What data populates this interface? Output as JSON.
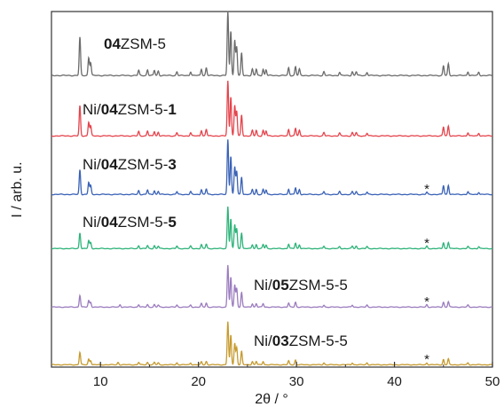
{
  "chart_data": {
    "type": "line",
    "xlabel": "2θ / °",
    "ylabel": "I / arb. u.",
    "xlim": [
      5,
      50
    ],
    "x_ticks": [
      10,
      20,
      30,
      40,
      50
    ],
    "y_ticks": false,
    "grid": false,
    "legend": "none",
    "annotation_marker": "*",
    "annotation_x": 43.3,
    "series": [
      {
        "name_parts": [
          {
            "t": "04",
            "b": true
          },
          {
            "t": "ZSM-5",
            "b": false
          }
        ],
        "color": "#6b6b6b",
        "annotated": false,
        "peaks": [
          [
            7.9,
            0.6
          ],
          [
            8.8,
            0.28
          ],
          [
            9.0,
            0.2
          ],
          [
            13.9,
            0.08
          ],
          [
            14.8,
            0.09
          ],
          [
            15.5,
            0.08
          ],
          [
            15.9,
            0.07
          ],
          [
            17.8,
            0.06
          ],
          [
            19.2,
            0.06
          ],
          [
            20.3,
            0.1
          ],
          [
            20.8,
            0.12
          ],
          [
            23.0,
            1.0
          ],
          [
            23.3,
            0.7
          ],
          [
            23.7,
            0.55
          ],
          [
            23.9,
            0.45
          ],
          [
            24.4,
            0.35
          ],
          [
            25.5,
            0.1
          ],
          [
            25.9,
            0.1
          ],
          [
            26.6,
            0.1
          ],
          [
            26.9,
            0.09
          ],
          [
            29.2,
            0.12
          ],
          [
            29.9,
            0.14
          ],
          [
            30.3,
            0.1
          ],
          [
            32.8,
            0.06
          ],
          [
            34.4,
            0.05
          ],
          [
            35.7,
            0.06
          ],
          [
            36.1,
            0.06
          ],
          [
            37.2,
            0.05
          ],
          [
            45.0,
            0.15
          ],
          [
            45.5,
            0.18
          ],
          [
            47.5,
            0.06
          ],
          [
            48.6,
            0.05
          ]
        ]
      },
      {
        "name_parts": [
          {
            "t": "Ni/",
            "b": false
          },
          {
            "t": "04",
            "b": true
          },
          {
            "t": "ZSM-5-",
            "b": false
          },
          {
            "t": "1",
            "b": true
          }
        ],
        "color": "#e4444c",
        "annotated": false,
        "peaks": [
          [
            7.9,
            0.55
          ],
          [
            8.8,
            0.25
          ],
          [
            9.0,
            0.18
          ],
          [
            13.9,
            0.08
          ],
          [
            14.8,
            0.09
          ],
          [
            15.5,
            0.08
          ],
          [
            15.9,
            0.07
          ],
          [
            17.8,
            0.06
          ],
          [
            19.2,
            0.06
          ],
          [
            20.3,
            0.1
          ],
          [
            20.8,
            0.12
          ],
          [
            23.0,
            1.0
          ],
          [
            23.3,
            0.72
          ],
          [
            23.7,
            0.55
          ],
          [
            23.9,
            0.45
          ],
          [
            24.4,
            0.38
          ],
          [
            25.5,
            0.1
          ],
          [
            25.9,
            0.1
          ],
          [
            26.6,
            0.1
          ],
          [
            26.9,
            0.09
          ],
          [
            29.2,
            0.12
          ],
          [
            29.9,
            0.14
          ],
          [
            30.3,
            0.1
          ],
          [
            32.8,
            0.06
          ],
          [
            34.4,
            0.05
          ],
          [
            35.7,
            0.06
          ],
          [
            36.1,
            0.06
          ],
          [
            37.2,
            0.05
          ],
          [
            45.0,
            0.16
          ],
          [
            45.5,
            0.18
          ],
          [
            47.5,
            0.06
          ],
          [
            48.6,
            0.05
          ]
        ]
      },
      {
        "name_parts": [
          {
            "t": "Ni/",
            "b": false
          },
          {
            "t": "04",
            "b": true
          },
          {
            "t": "ZSM-5-",
            "b": false
          },
          {
            "t": "3",
            "b": true
          }
        ],
        "color": "#3a62b6",
        "annotated": true,
        "peaks": [
          [
            7.9,
            0.45
          ],
          [
            8.8,
            0.22
          ],
          [
            9.0,
            0.16
          ],
          [
            13.9,
            0.07
          ],
          [
            14.8,
            0.08
          ],
          [
            15.5,
            0.07
          ],
          [
            15.9,
            0.06
          ],
          [
            17.8,
            0.05
          ],
          [
            19.2,
            0.05
          ],
          [
            20.3,
            0.09
          ],
          [
            20.8,
            0.1
          ],
          [
            23.0,
            1.0
          ],
          [
            23.3,
            0.7
          ],
          [
            23.7,
            0.5
          ],
          [
            23.9,
            0.42
          ],
          [
            24.4,
            0.32
          ],
          [
            25.5,
            0.09
          ],
          [
            25.9,
            0.09
          ],
          [
            26.6,
            0.09
          ],
          [
            26.9,
            0.08
          ],
          [
            29.2,
            0.1
          ],
          [
            29.9,
            0.12
          ],
          [
            30.3,
            0.09
          ],
          [
            32.8,
            0.05
          ],
          [
            34.4,
            0.05
          ],
          [
            35.7,
            0.05
          ],
          [
            36.1,
            0.05
          ],
          [
            37.2,
            0.04
          ],
          [
            43.3,
            0.04
          ],
          [
            45.0,
            0.16
          ],
          [
            45.5,
            0.17
          ],
          [
            47.5,
            0.05
          ],
          [
            48.6,
            0.04
          ]
        ]
      },
      {
        "name_parts": [
          {
            "t": "Ni/",
            "b": false
          },
          {
            "t": "04",
            "b": true
          },
          {
            "t": "ZSM-5-",
            "b": false
          },
          {
            "t": "5",
            "b": true
          }
        ],
        "color": "#2fb37a",
        "annotated": true,
        "peaks": [
          [
            7.9,
            0.32
          ],
          [
            8.8,
            0.16
          ],
          [
            9.0,
            0.12
          ],
          [
            13.9,
            0.06
          ],
          [
            14.8,
            0.06
          ],
          [
            15.5,
            0.06
          ],
          [
            15.9,
            0.05
          ],
          [
            17.8,
            0.05
          ],
          [
            19.2,
            0.05
          ],
          [
            20.3,
            0.08
          ],
          [
            20.8,
            0.09
          ],
          [
            23.0,
            0.85
          ],
          [
            23.3,
            0.6
          ],
          [
            23.7,
            0.48
          ],
          [
            23.9,
            0.4
          ],
          [
            24.4,
            0.32
          ],
          [
            25.5,
            0.08
          ],
          [
            25.9,
            0.08
          ],
          [
            26.6,
            0.08
          ],
          [
            26.9,
            0.07
          ],
          [
            29.2,
            0.09
          ],
          [
            29.9,
            0.11
          ],
          [
            30.3,
            0.08
          ],
          [
            32.8,
            0.05
          ],
          [
            34.4,
            0.04
          ],
          [
            35.7,
            0.05
          ],
          [
            36.1,
            0.05
          ],
          [
            37.2,
            0.04
          ],
          [
            43.3,
            0.05
          ],
          [
            45.0,
            0.12
          ],
          [
            45.5,
            0.13
          ],
          [
            47.5,
            0.04
          ],
          [
            48.6,
            0.04
          ]
        ]
      },
      {
        "name_parts": [
          {
            "t": "Ni/",
            "b": false
          },
          {
            "t": "05",
            "b": true
          },
          {
            "t": "ZSM-5-5",
            "b": false
          }
        ],
        "color": "#9b7cbe",
        "annotated": true,
        "peaks": [
          [
            7.9,
            0.24
          ],
          [
            8.8,
            0.13
          ],
          [
            9.0,
            0.1
          ],
          [
            12.0,
            0.05
          ],
          [
            13.9,
            0.05
          ],
          [
            14.8,
            0.05
          ],
          [
            15.5,
            0.05
          ],
          [
            15.9,
            0.04
          ],
          [
            17.8,
            0.04
          ],
          [
            19.2,
            0.04
          ],
          [
            20.3,
            0.07
          ],
          [
            20.8,
            0.08
          ],
          [
            23.0,
            0.85
          ],
          [
            23.3,
            0.6
          ],
          [
            23.7,
            0.45
          ],
          [
            23.9,
            0.38
          ],
          [
            24.4,
            0.3
          ],
          [
            25.5,
            0.07
          ],
          [
            25.9,
            0.07
          ],
          [
            26.6,
            0.07
          ],
          [
            29.2,
            0.08
          ],
          [
            29.9,
            0.1
          ],
          [
            32.8,
            0.04
          ],
          [
            35.7,
            0.04
          ],
          [
            37.2,
            0.04
          ],
          [
            43.3,
            0.05
          ],
          [
            45.0,
            0.1
          ],
          [
            45.5,
            0.11
          ],
          [
            47.5,
            0.04
          ]
        ]
      },
      {
        "name_parts": [
          {
            "t": "Ni/",
            "b": false
          },
          {
            "t": "03",
            "b": true
          },
          {
            "t": "ZSM-5-5",
            "b": false
          }
        ],
        "color": "#c69a2e",
        "annotated": true,
        "peaks": [
          [
            7.9,
            0.26
          ],
          [
            8.8,
            0.12
          ],
          [
            9.0,
            0.09
          ],
          [
            11.8,
            0.05
          ],
          [
            13.9,
            0.05
          ],
          [
            14.8,
            0.05
          ],
          [
            15.5,
            0.05
          ],
          [
            15.9,
            0.04
          ],
          [
            17.8,
            0.04
          ],
          [
            19.2,
            0.04
          ],
          [
            20.3,
            0.06
          ],
          [
            20.8,
            0.07
          ],
          [
            23.0,
            0.9
          ],
          [
            23.3,
            0.62
          ],
          [
            23.7,
            0.45
          ],
          [
            23.9,
            0.36
          ],
          [
            24.4,
            0.28
          ],
          [
            25.5,
            0.07
          ],
          [
            25.9,
            0.07
          ],
          [
            26.6,
            0.07
          ],
          [
            29.2,
            0.08
          ],
          [
            29.9,
            0.1
          ],
          [
            32.8,
            0.04
          ],
          [
            35.7,
            0.04
          ],
          [
            37.2,
            0.04
          ],
          [
            43.3,
            0.04
          ],
          [
            45.0,
            0.11
          ],
          [
            45.5,
            0.12
          ],
          [
            47.5,
            0.04
          ]
        ]
      }
    ]
  }
}
